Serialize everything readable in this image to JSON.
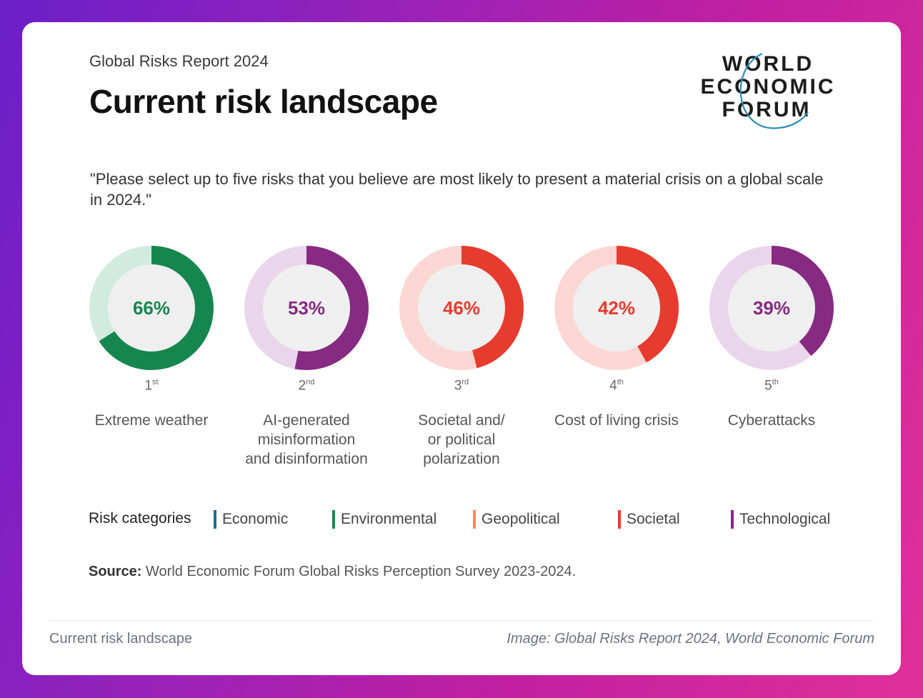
{
  "header": {
    "report": "Global Risks Report 2024",
    "title": "Current risk landscape",
    "logo_text": [
      "WORLD",
      "ECONOMIC",
      "FORUM"
    ]
  },
  "question": "\"Please select up to five risks that you believe are most likely to present a material crisis on a global scale in 2024.\"",
  "chart_data": {
    "type": "pie",
    "subtype": "donut",
    "items": [
      {
        "rank": "1",
        "rank_suffix": "st",
        "label": "Extreme weather",
        "value": 66,
        "value_label": "66%",
        "category": "Environmental"
      },
      {
        "rank": "2",
        "rank_suffix": "nd",
        "label": "AI-generated\nmisinformation\nand disinformation",
        "value": 53,
        "value_label": "53%",
        "category": "Technological"
      },
      {
        "rank": "3",
        "rank_suffix": "rd",
        "label": "Societal and/\nor political\npolarization",
        "value": 46,
        "value_label": "46%",
        "category": "Societal"
      },
      {
        "rank": "4",
        "rank_suffix": "th",
        "label": "Cost of living crisis",
        "value": 42,
        "value_label": "42%",
        "category": "Societal"
      },
      {
        "rank": "5",
        "rank_suffix": "th",
        "label": "Cyberattacks",
        "value": 39,
        "value_label": "39%",
        "category": "Technological"
      }
    ],
    "colors": {
      "Economic": "#1f6e8c",
      "Environmental": "#16864f",
      "Geopolitical": "#ef8a6a",
      "Societal": "#e63b2e",
      "Technological": "#862a82"
    },
    "track_colors": {
      "Environmental": "#d2ebe0",
      "Technological": "#ead6ea",
      "Societal": "#fbd7d3"
    }
  },
  "legend": {
    "label": "Risk categories",
    "items": [
      "Economic",
      "Environmental",
      "Geopolitical",
      "Societal",
      "Technological"
    ]
  },
  "source": {
    "label": "Source:",
    "text": "World Economic Forum Global Risks Perception Survey 2023-2024."
  },
  "footer": {
    "caption": "Current risk landscape",
    "credit": "Image: Global Risks Report 2024, World Economic Forum"
  }
}
